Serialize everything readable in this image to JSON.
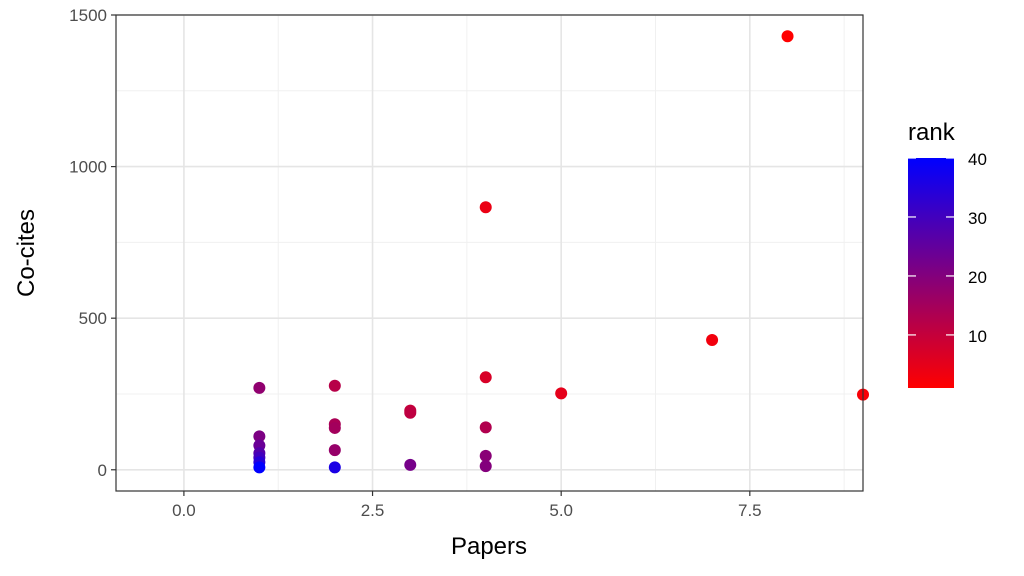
{
  "chart_data": {
    "type": "scatter",
    "xlabel": "Papers",
    "ylabel": "Co-cites",
    "xlim": [
      -0.9,
      9.0
    ],
    "ylim": [
      -70,
      1500
    ],
    "x_ticks": [
      0.0,
      2.5,
      5.0,
      7.5
    ],
    "x_tick_labels": [
      "0.0",
      "2.5",
      "5.0",
      "7.5"
    ],
    "y_ticks": [
      0,
      500,
      1000,
      1500
    ],
    "y_tick_labels": [
      "0",
      "500",
      "1000",
      "1500"
    ],
    "grid": true,
    "legend": {
      "title": "rank",
      "position": "right",
      "scale": "continuous",
      "low_color": "#ff0000",
      "high_color": "#0000ff",
      "range": [
        1,
        40
      ],
      "ticks": [
        10,
        20,
        30,
        40
      ],
      "tick_labels": [
        "10",
        "20",
        "30",
        "40"
      ]
    },
    "points": [
      {
        "x": 8,
        "y": 1430,
        "rank": 1
      },
      {
        "x": 9,
        "y": 248,
        "rank": 2
      },
      {
        "x": 7,
        "y": 428,
        "rank": 3
      },
      {
        "x": 4,
        "y": 866,
        "rank": 4
      },
      {
        "x": 5,
        "y": 252,
        "rank": 5
      },
      {
        "x": 4,
        "y": 305,
        "rank": 7
      },
      {
        "x": 3,
        "y": 195,
        "rank": 10
      },
      {
        "x": 3,
        "y": 188,
        "rank": 11
      },
      {
        "x": 2,
        "y": 277,
        "rank": 12
      },
      {
        "x": 4,
        "y": 140,
        "rank": 13
      },
      {
        "x": 2,
        "y": 150,
        "rank": 14
      },
      {
        "x": 2,
        "y": 138,
        "rank": 15
      },
      {
        "x": 2,
        "y": 65,
        "rank": 17
      },
      {
        "x": 1,
        "y": 270,
        "rank": 18
      },
      {
        "x": 4,
        "y": 46,
        "rank": 19
      },
      {
        "x": 4,
        "y": 12,
        "rank": 20
      },
      {
        "x": 3,
        "y": 16,
        "rank": 22
      },
      {
        "x": 1,
        "y": 110,
        "rank": 21
      },
      {
        "x": 1,
        "y": 80,
        "rank": 24
      },
      {
        "x": 1,
        "y": 55,
        "rank": 27
      },
      {
        "x": 1,
        "y": 40,
        "rank": 30
      },
      {
        "x": 1,
        "y": 25,
        "rank": 34
      },
      {
        "x": 2,
        "y": 8,
        "rank": 36
      },
      {
        "x": 1,
        "y": 8,
        "rank": 40
      }
    ]
  }
}
